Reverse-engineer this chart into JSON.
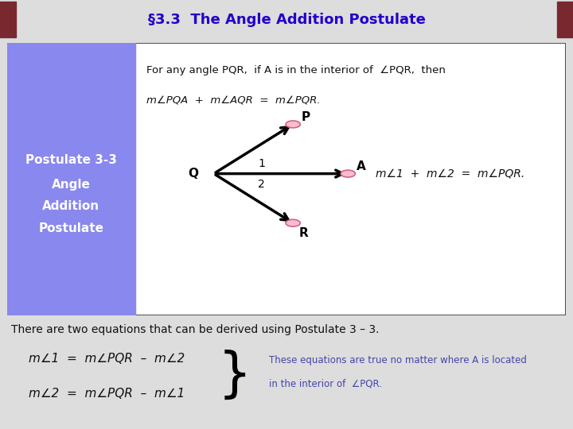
{
  "title": "§3.3  The Angle Addition Postulate",
  "title_bg": "#b05055",
  "title_color": "#2200cc",
  "title_fontsize": 13,
  "bg_color": "#dddddd",
  "left_panel_color": "#8888ee",
  "left_panel_text": [
    "Postulate 3-3",
    "Angle",
    "Addition",
    "Postulate"
  ],
  "left_panel_text_color": "white",
  "postulate_line1": "For any angle PQR,  if A is in the interior of  ",
  "postulate_angle1": "∠PQR,  then",
  "postulate_line2_a": "m",
  "postulate_line2_angle_a": "∠",
  "postulate_line2_b": "PQA  +  m",
  "postulate_line2_angle_b": "∠",
  "postulate_line2_c": "AQR  =  m",
  "postulate_line2_angle_c": "∠",
  "postulate_line2_d": "PQR.",
  "diagram_eq": "m∠1  +  m∠2  =  m∠PQR.",
  "bottom_text": "There are two equations that can be derived using Postulate 3 – 3.",
  "bottom_eq1": "m∠1  =  m∠PQR  –  m∠2",
  "bottom_eq2": "m∠2  =  m∠PQR  –  m∠1",
  "bottom_note_line1": "These equations are true no matter where A is located",
  "bottom_note_line2": "in the interior of  ∠PQR.",
  "bottom_note_color": "#4444aa",
  "main_text_color": "#111111",
  "circle_color": "#ffbbcc",
  "circle_edge": "#cc6688"
}
